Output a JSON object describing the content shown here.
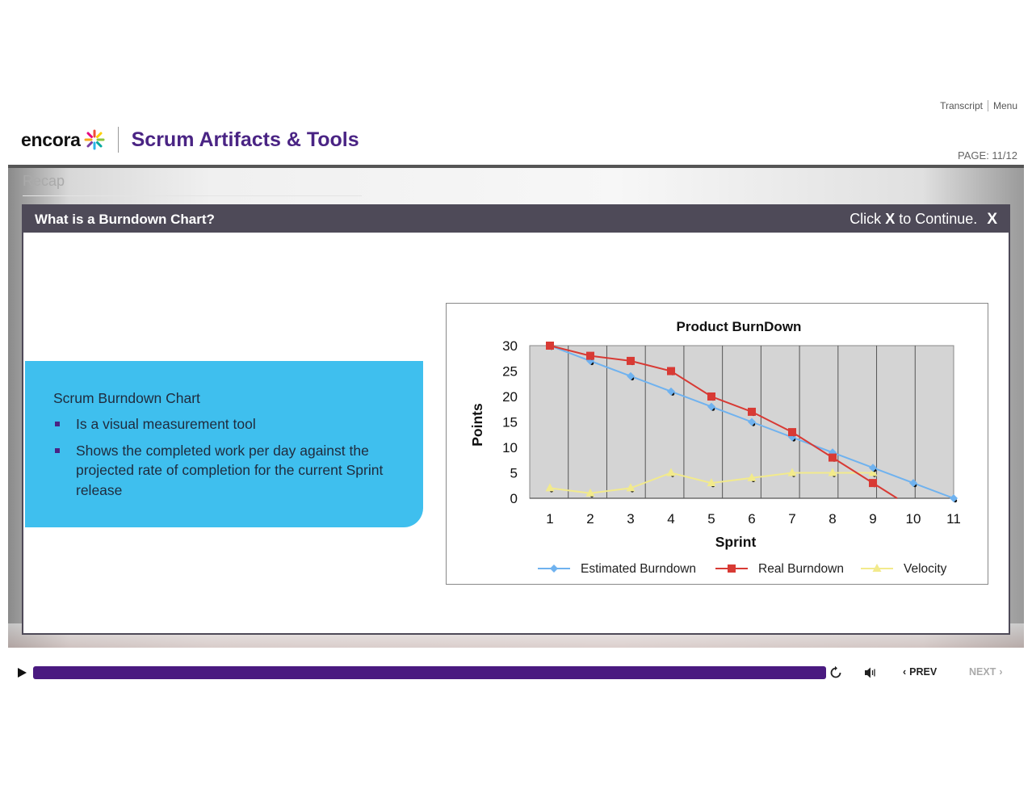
{
  "top_links": {
    "transcript": "Transcript",
    "menu": "Menu"
  },
  "header": {
    "logo_text": "encora",
    "course_title": "Scrum Artifacts & Tools"
  },
  "page_indicator": "PAGE: 11/12",
  "section_label": "Recap",
  "modal": {
    "title": "What is a Burndown Chart?",
    "close_prefix": "Click",
    "close_key": "X",
    "close_suffix": "to Continue.",
    "close_icon": "X"
  },
  "info_box": {
    "title": "Scrum Burndown Chart",
    "bullets": [
      "Is a visual measurement tool",
      "Shows the completed work per day against the projected rate of completion for the current Sprint release"
    ]
  },
  "chart_data": {
    "type": "line",
    "title": "Product BurnDown",
    "xlabel": "Sprint",
    "ylabel": "Points",
    "x": [
      1,
      2,
      3,
      4,
      5,
      6,
      7,
      8,
      9,
      10,
      11
    ],
    "ylim": [
      0,
      30
    ],
    "yticks": [
      0,
      5,
      10,
      15,
      20,
      25,
      30
    ],
    "grid": "vertical",
    "legend": "bottom",
    "series": [
      {
        "name": "Estimated Burndown",
        "color": "#6fb2ef",
        "marker": "diamond",
        "x": [
          1,
          2,
          3,
          4,
          5,
          6,
          7,
          8,
          9,
          10,
          11
        ],
        "values": [
          30,
          27,
          24,
          21,
          18,
          15,
          12,
          9,
          6,
          3,
          0
        ]
      },
      {
        "name": "Real Burndown",
        "color": "#d83a34",
        "marker": "square",
        "x": [
          1,
          2,
          3,
          4,
          5,
          6,
          7,
          8,
          9,
          9.6
        ],
        "values": [
          30,
          28,
          27,
          25,
          20,
          17,
          13,
          8,
          3,
          0
        ]
      },
      {
        "name": "Velocity",
        "color": "#f2ea8c",
        "marker": "triangle",
        "x": [
          1,
          2,
          3,
          4,
          5,
          6,
          7,
          8,
          9
        ],
        "values": [
          2,
          1,
          2,
          5,
          3,
          4,
          5,
          5,
          5
        ]
      }
    ]
  },
  "controls": {
    "progress_percent": 100,
    "prev_label": "PREV",
    "next_label": "NEXT",
    "progress_color": "#4a1a80"
  }
}
